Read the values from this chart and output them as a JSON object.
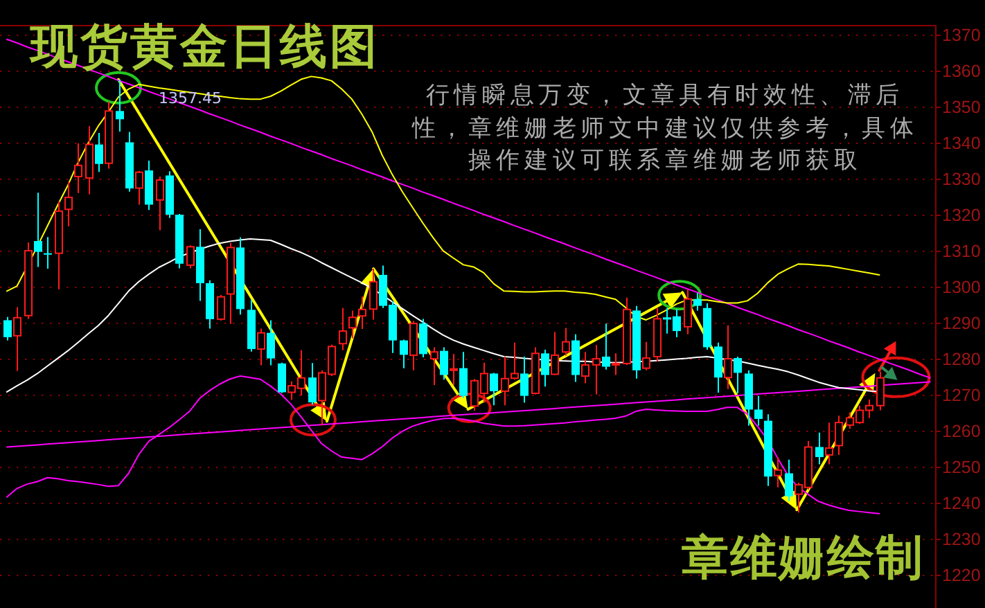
{
  "chart_data": {
    "type": "candlestick",
    "title": "现货黄金日线图",
    "annotations": [
      "行情瞬息万变，文章具有时效性、滞后性，章维姗老师文中建议仅供参考，具体操作建议可联系章维姗老师获取",
      "1357.45",
      "章维姗绘制"
    ],
    "categories": [
      null,
      null,
      null,
      null,
      null,
      null,
      null,
      null,
      null,
      null,
      null,
      null,
      null,
      null,
      null,
      null,
      null,
      null,
      null,
      null,
      null,
      null,
      null,
      null,
      null,
      null,
      null,
      null,
      null,
      null,
      null,
      null,
      null,
      null,
      null,
      null,
      null,
      null,
      null,
      null,
      null,
      null,
      null,
      null,
      null,
      null,
      null,
      null,
      null,
      null,
      null,
      null,
      null,
      null,
      null,
      null,
      null,
      null,
      null,
      null,
      null,
      null,
      null,
      null,
      null,
      null,
      null,
      null,
      null,
      null,
      null,
      null,
      null,
      null,
      null,
      null,
      null,
      null,
      null,
      null,
      null,
      null,
      null,
      null,
      null,
      null,
      null,
      null,
      null,
      null,
      null,
      null
    ],
    "ohlc": [
      [
        1290.6,
        1291.5,
        1285.0,
        1285.9
      ],
      [
        1286.3,
        1294.2,
        1276.5,
        1291.3
      ],
      [
        1291.9,
        1312.2,
        1291.0,
        1309.9
      ],
      [
        1312.6,
        1326.0,
        1305.4,
        1309.6
      ],
      [
        1309.2,
        1313.7,
        1304.9,
        1309.0
      ],
      [
        1309.2,
        1323.6,
        1299.2,
        1320.9
      ],
      [
        1321.4,
        1329.1,
        1316.7,
        1324.7
      ],
      [
        1330.5,
        1339.7,
        1325.9,
        1333.6
      ],
      [
        1330.1,
        1344.5,
        1325.6,
        1339.4
      ],
      [
        1339.4,
        1342.6,
        1331.8,
        1334.0
      ],
      [
        1334.2,
        1351.3,
        1332.7,
        1348.7
      ],
      [
        1348.7,
        1357.45,
        1343.0,
        1346.4
      ],
      [
        1340.0,
        1342.9,
        1326.3,
        1327.2
      ],
      [
        1327.3,
        1332.1,
        1322.7,
        1331.7
      ],
      [
        1332.2,
        1334.9,
        1321.2,
        1322.7
      ],
      [
        1324.0,
        1330.5,
        1315.6,
        1329.5
      ],
      [
        1330.8,
        1332.0,
        1319.0,
        1319.9
      ],
      [
        1319.9,
        1320.1,
        1305.0,
        1306.3
      ],
      [
        1305.9,
        1311.4,
        1305.0,
        1311.0
      ],
      [
        1311.0,
        1315.9,
        1296.0,
        1300.9
      ],
      [
        1300.9,
        1301.7,
        1288.3,
        1290.9
      ],
      [
        1290.9,
        1297.6,
        1290.5,
        1297.1
      ],
      [
        1297.9,
        1312.1,
        1289.6,
        1310.8
      ],
      [
        1310.8,
        1313.6,
        1292.2,
        1293.7
      ],
      [
        1293.5,
        1296.3,
        1281.9,
        1282.6
      ],
      [
        1282.6,
        1288.3,
        1278.1,
        1287.1
      ],
      [
        1287.1,
        1290.6,
        1278.1,
        1280.0
      ],
      [
        1278.6,
        1278.8,
        1270.4,
        1270.6
      ],
      [
        1270.6,
        1273.6,
        1268.5,
        1272.4
      ],
      [
        1271.7,
        1282.3,
        1269.7,
        1274.6
      ],
      [
        1274.7,
        1278.7,
        1267.2,
        1267.8
      ],
      [
        1268.3,
        1276.7,
        1261.4,
        1276.0
      ],
      [
        1275.6,
        1283.8,
        1275.1,
        1283.3
      ],
      [
        1284.1,
        1294.0,
        1282.3,
        1287.6
      ],
      [
        1288.5,
        1293.3,
        1285.6,
        1291.4
      ],
      [
        1291.8,
        1297.2,
        1288.2,
        1293.6
      ],
      [
        1293.7,
        1304.9,
        1290.8,
        1301.3
      ],
      [
        1303.2,
        1305.8,
        1294.0,
        1294.6
      ],
      [
        1294.9,
        1295.9,
        1281.5,
        1285.0
      ],
      [
        1285.0,
        1285.2,
        1277.3,
        1281.0
      ],
      [
        1280.9,
        1290.4,
        1276.7,
        1289.7
      ],
      [
        1289.7,
        1291.0,
        1280.3,
        1281.2
      ],
      [
        1279.9,
        1283.1,
        1272.6,
        1281.8
      ],
      [
        1282.1,
        1283.1,
        1274.1,
        1275.4
      ],
      [
        1276.7,
        1281.2,
        1272.6,
        1277.1
      ],
      [
        1277.3,
        1281.8,
        1269.0,
        1269.6
      ],
      [
        1266.8,
        1274.3,
        1265.5,
        1273.8
      ],
      [
        1270.3,
        1278.8,
        1267.7,
        1275.8
      ],
      [
        1275.8,
        1276.0,
        1267.0,
        1270.9
      ],
      [
        1270.9,
        1280.5,
        1267.0,
        1274.4
      ],
      [
        1274.5,
        1284.4,
        1274.1,
        1275.8
      ],
      [
        1275.8,
        1280.5,
        1267.7,
        1269.6
      ],
      [
        1270.3,
        1283.1,
        1270.0,
        1281.4
      ],
      [
        1281.4,
        1282.4,
        1272.2,
        1275.4
      ],
      [
        1275.6,
        1287.3,
        1275.4,
        1280.9
      ],
      [
        1281.8,
        1288.5,
        1280.8,
        1284.6
      ],
      [
        1285.0,
        1286.7,
        1273.5,
        1275.4
      ],
      [
        1275.1,
        1281.8,
        1273.1,
        1278.2
      ],
      [
        1278.2,
        1283.7,
        1270.0,
        1279.9
      ],
      [
        1280.5,
        1289.7,
        1276.9,
        1277.7
      ],
      [
        1278.2,
        1281.4,
        1275.4,
        1278.6
      ],
      [
        1278.6,
        1296.9,
        1278.2,
        1293.6
      ],
      [
        1293.3,
        1294.6,
        1274.4,
        1276.7
      ],
      [
        1277.3,
        1284.6,
        1276.7,
        1280.1
      ],
      [
        1280.5,
        1294.0,
        1279.2,
        1291.0
      ],
      [
        1291.4,
        1294.0,
        1286.9,
        1290.8
      ],
      [
        1291.7,
        1293.6,
        1285.9,
        1287.6
      ],
      [
        1288.8,
        1299.1,
        1286.7,
        1296.5
      ],
      [
        1296.5,
        1298.2,
        1293.3,
        1294.6
      ],
      [
        1294.0,
        1295.3,
        1282.4,
        1283.1
      ],
      [
        1283.3,
        1284.4,
        1270.5,
        1274.7
      ],
      [
        1274.7,
        1289.2,
        1271.5,
        1279.9
      ],
      [
        1280.1,
        1280.5,
        1270.3,
        1276.0
      ],
      [
        1275.8,
        1276.7,
        1261.3,
        1265.8
      ],
      [
        1265.8,
        1269.6,
        1261.3,
        1263.2
      ],
      [
        1262.7,
        1264.5,
        1244.6,
        1247.2
      ],
      [
        1247.5,
        1252.6,
        1244.2,
        1249.0
      ],
      [
        1248.1,
        1251.9,
        1240.4,
        1241.7
      ],
      [
        1242.3,
        1245.5,
        1237.2,
        1244.9
      ],
      [
        1244.2,
        1257.1,
        1243.6,
        1255.4
      ],
      [
        1255.4,
        1259.4,
        1250.6,
        1252.6
      ],
      [
        1253.2,
        1262.2,
        1250.6,
        1255.1
      ],
      [
        1255.8,
        1264.1,
        1253.2,
        1262.2
      ],
      [
        1261.5,
        1265.0,
        1260.5,
        1263.5
      ],
      [
        1262.2,
        1266.9,
        1261.8,
        1265.6
      ],
      [
        1265.6,
        1268.6,
        1263.5,
        1266.9
      ],
      [
        1266.9,
        1276.3,
        1265.6,
        1274.6
      ],
      null,
      null,
      null,
      null,
      null
    ],
    "series": [
      {
        "type": "line",
        "color": "#ff00ff",
        "values": [
          1368.6,
          1367.6,
          1366.5,
          1365.5,
          1364.5,
          1363.4,
          1362.4,
          1361.4,
          1360.3,
          1359.3,
          1358.3,
          1357.2,
          1356.2,
          1355.2,
          1354.1,
          1353.1,
          1352.1,
          1351.0,
          1350.0,
          1349.0,
          1347.9,
          1346.9,
          1345.9,
          1344.8,
          1343.8,
          1342.8,
          1341.7,
          1340.7,
          1339.7,
          1338.6,
          1337.6,
          1336.6,
          1335.5,
          1334.5,
          1333.5,
          1332.4,
          1331.4,
          1330.4,
          1329.3,
          1328.3,
          1327.3,
          1326.2,
          1325.2,
          1324.2,
          1323.1,
          1322.1,
          1321.1,
          1320.0,
          1319.0,
          1318.0,
          1316.9,
          1315.9,
          1314.9,
          1313.8,
          1312.8,
          1311.8,
          1310.7,
          1309.7,
          1308.7,
          1307.6,
          1306.6,
          1305.6,
          1304.5,
          1303.5,
          1302.5,
          1301.4,
          1300.4,
          1299.4,
          1298.4,
          1297.3,
          1296.3,
          1295.3,
          1294.2,
          1293.2,
          1292.2,
          1291.1,
          1290.1,
          1289.1,
          1288.0,
          1287.0,
          1286.0,
          1284.9,
          1283.9,
          1282.9,
          1281.8,
          1280.8,
          1279.8,
          1278.7,
          1277.7,
          1276.7,
          1275.6,
          1274.6
        ]
      },
      {
        "type": "line",
        "color": "#ff00ff",
        "values": [
          1255.4,
          1255.6,
          1255.8,
          1256.0,
          1256.2,
          1256.4,
          1256.6,
          1256.8,
          1257.0,
          1257.2,
          1257.4,
          1257.6,
          1257.8,
          1258.0,
          1258.2,
          1258.4,
          1258.6,
          1258.8,
          1259.0,
          1259.2,
          1259.4,
          1259.6,
          1259.8,
          1260.0,
          1260.2,
          1260.4,
          1260.6,
          1260.8,
          1261.0,
          1261.2,
          1261.4,
          1261.6,
          1261.8,
          1262.0,
          1262.2,
          1262.4,
          1262.6,
          1262.8,
          1263.0,
          1263.2,
          1263.4,
          1263.6,
          1263.8,
          1264.0,
          1264.2,
          1264.4,
          1264.6,
          1264.7,
          1264.9,
          1265.1,
          1265.3,
          1265.5,
          1265.7,
          1265.9,
          1266.1,
          1266.3,
          1266.5,
          1266.7,
          1266.9,
          1267.1,
          1267.3,
          1267.5,
          1267.7,
          1267.9,
          1268.1,
          1268.3,
          1268.5,
          1268.7,
          1268.9,
          1269.1,
          1269.3,
          1269.5,
          1269.7,
          1269.9,
          1270.1,
          1270.3,
          1270.5,
          1270.7,
          1270.9,
          1271.1,
          1271.3,
          1271.5,
          1271.7,
          1271.9,
          1272.1,
          1272.3,
          1272.5,
          1272.7,
          1272.9,
          1273.1,
          1273.3,
          1273.5
        ]
      },
      {
        "type": "line",
        "color": "#ffff00",
        "values": [
          1298.7,
          1300.1,
          1305.5,
          1311.1,
          1316.8,
          1322.5,
          1328.0,
          1334.3,
          1339.7,
          1344.5,
          1348.4,
          1352.6,
          1354.8,
          1356.1,
          1355.6,
          1355.1,
          1354.7,
          1354.3,
          1353.9,
          1353.5,
          1353.1,
          1352.8,
          1352.4,
          1352.1,
          1352.0,
          1352.0,
          1352.8,
          1354.2,
          1355.9,
          1357.5,
          1358.3,
          1357.9,
          1357.1,
          1354.8,
          1352.0,
          1347.8,
          1342.9,
          1336.4,
          1331.0,
          1326.2,
          1321.9,
          1317.6,
          1313.6,
          1309.9,
          1307.9,
          1306.0,
          1305.4,
          1303.8,
          1300.7,
          1298.7,
          1298.6,
          1298.5,
          1298.5,
          1298.6,
          1298.7,
          1298.7,
          1298.4,
          1298.2,
          1297.8,
          1297.1,
          1296.4,
          1294.1,
          1291.7,
          1290.7,
          1291.9,
          1293.4,
          1295.1,
          1296.2,
          1296.2,
          1296.2,
          1295.8,
          1295.4,
          1295.4,
          1296.0,
          1298.1,
          1301.0,
          1303.4,
          1304.9,
          1306.2,
          1306.1,
          1305.9,
          1305.7,
          1305.2,
          1304.7,
          1304.2,
          1303.7,
          1303.2,
          null,
          null,
          null,
          null,
          null
        ]
      },
      {
        "type": "line",
        "color": "#ffffff",
        "values": [
          1270.7,
          1272.4,
          1274.0,
          1275.8,
          1277.9,
          1280.0,
          1282.1,
          1284.4,
          1286.8,
          1289.1,
          1291.9,
          1295.3,
          1298.7,
          1301.3,
          1303.4,
          1305.3,
          1306.7,
          1308.2,
          1309.3,
          1310.3,
          1311.2,
          1312.0,
          1312.5,
          1312.9,
          1313.2,
          1313.0,
          1312.8,
          1311.7,
          1310.5,
          1309.4,
          1308.1,
          1306.6,
          1305.2,
          1303.8,
          1302.4,
          1301.0,
          1299.4,
          1297.6,
          1295.7,
          1293.8,
          1291.9,
          1290.1,
          1288.2,
          1286.5,
          1285.1,
          1284.0,
          1283.1,
          1282.2,
          1281.3,
          1280.5,
          1280.3,
          1280.0,
          1279.8,
          1279.6,
          1279.4,
          1279.3,
          1279.2,
          1279.2,
          1279.0,
          1278.9,
          1278.8,
          1278.9,
          1279.1,
          1279.2,
          1279.4,
          1279.6,
          1279.8,
          1280.0,
          1280.3,
          1280.5,
          1280.1,
          1279.7,
          1279.3,
          1278.7,
          1278.1,
          1277.5,
          1277.0,
          1276.3,
          1275.4,
          1274.4,
          1273.4,
          1272.6,
          1271.9,
          1271.6,
          1271.3,
          1271.0,
          1270.8,
          null,
          null,
          null,
          null,
          null
        ]
      },
      {
        "type": "line",
        "color": "#ff00ff",
        "values": [
          1241.5,
          1243.9,
          1245.1,
          1245.8,
          1246.9,
          1246.6,
          1246.1,
          1245.8,
          1245.4,
          1245.0,
          1244.5,
          1244.7,
          1248.1,
          1253.3,
          1257.0,
          1258.9,
          1260.8,
          1263.0,
          1265.3,
          1268.9,
          1271.1,
          1272.9,
          1274.3,
          1275.1,
          1274.7,
          1274.2,
          1272.3,
          1270.1,
          1267.3,
          1263.8,
          1260.1,
          1256.4,
          1254.3,
          1252.6,
          1252.3,
          1251.9,
          1253.5,
          1255.5,
          1257.9,
          1259.8,
          1261.2,
          1262.1,
          1262.8,
          1263.3,
          1263.4,
          1263.1,
          1262.6,
          1262.0,
          1261.6,
          1261.2,
          1261.2,
          1261.3,
          1261.5,
          1261.7,
          1261.9,
          1262.1,
          1262.4,
          1262.6,
          1262.9,
          1263.1,
          1263.4,
          1264.0,
          1265.3,
          1265.9,
          1265.7,
          1265.5,
          1265.4,
          1265.3,
          1265.3,
          1265.3,
          1265.8,
          1266.4,
          1266.4,
          1264.5,
          1261.1,
          1257.4,
          1252.2,
          1247.5,
          1244.2,
          1242.2,
          1240.3,
          1239.3,
          1238.5,
          1237.8,
          1237.5,
          1237.2,
          1236.9,
          null,
          null,
          null,
          null,
          null
        ]
      }
    ],
    "ylim": [
      1210.7,
      1372.6
    ],
    "yticks": [
      1220,
      1230,
      1240,
      1250,
      1260,
      1270,
      1280,
      1290,
      1300,
      1310,
      1320,
      1330,
      1340,
      1350,
      1360,
      1370
    ],
    "grid": "y",
    "tick_labels": "y"
  }
}
